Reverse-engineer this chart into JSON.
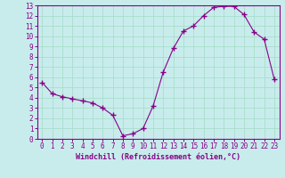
{
  "x": [
    0,
    1,
    2,
    3,
    4,
    5,
    6,
    7,
    8,
    9,
    10,
    11,
    12,
    13,
    14,
    15,
    16,
    17,
    18,
    19,
    20,
    21,
    22,
    23
  ],
  "y": [
    5.5,
    4.4,
    4.1,
    3.9,
    3.7,
    3.5,
    3.0,
    2.3,
    0.3,
    0.5,
    1.0,
    3.2,
    6.5,
    8.8,
    10.5,
    11.0,
    12.0,
    12.8,
    12.9,
    12.9,
    12.1,
    10.4,
    9.7,
    5.8
  ],
  "line_color": "#880088",
  "marker": "+",
  "marker_size": 4,
  "bg_color": "#c8ecec",
  "grid_color": "#aaddcc",
  "xlabel": "Windchill (Refroidissement éolien,°C)",
  "xlabel_color": "#880088",
  "tick_color": "#880088",
  "spine_color": "#880088",
  "ylim": [
    0,
    13
  ],
  "xlim": [
    -0.5,
    23.5
  ],
  "yticks": [
    0,
    1,
    2,
    3,
    4,
    5,
    6,
    7,
    8,
    9,
    10,
    11,
    12,
    13
  ],
  "xticks": [
    0,
    1,
    2,
    3,
    4,
    5,
    6,
    7,
    8,
    9,
    10,
    11,
    12,
    13,
    14,
    15,
    16,
    17,
    18,
    19,
    20,
    21,
    22,
    23
  ],
  "tick_fontsize": 5.5,
  "xlabel_fontsize": 6,
  "xlabel_fontweight": "bold"
}
